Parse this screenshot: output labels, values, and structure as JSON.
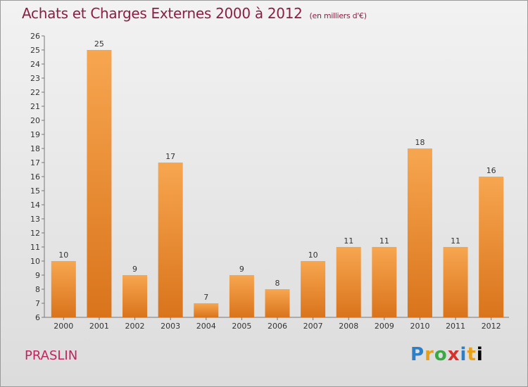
{
  "header": {
    "title": "Achats et Charges Externes 2000 à 2012",
    "unit": "(en milliers d'€)"
  },
  "footer": {
    "commune": "PRASLIN",
    "logo_letters": [
      "P",
      "r",
      "o",
      "x",
      "i",
      "t",
      "i"
    ]
  },
  "colors": {
    "bar_light": "#f7a650",
    "bar_dark": "#d9741b",
    "title": "#8a1f44",
    "commune": "#c0245c"
  },
  "chart_data": {
    "type": "bar",
    "title": "Achats et Charges Externes 2000 à 2012",
    "categories": [
      "2000",
      "2001",
      "2002",
      "2003",
      "2004",
      "2005",
      "2006",
      "2007",
      "2008",
      "2009",
      "2010",
      "2011",
      "2012"
    ],
    "values": [
      10,
      25,
      9,
      17,
      7,
      9,
      8,
      10,
      11,
      11,
      18,
      11,
      16
    ],
    "ylim": [
      6,
      26
    ],
    "yticks": [
      6,
      7,
      8,
      9,
      10,
      11,
      12,
      13,
      14,
      15,
      16,
      17,
      18,
      19,
      20,
      21,
      22,
      23,
      24,
      25,
      26
    ],
    "grid": false
  }
}
